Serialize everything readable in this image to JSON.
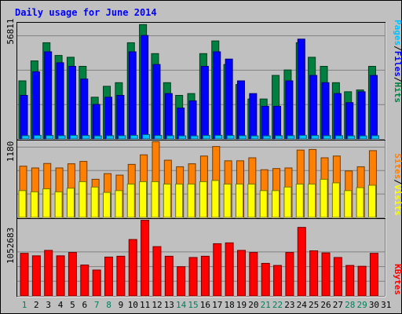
{
  "chart_data": [
    {
      "type": "bar",
      "title": "Daily usage for June 2014",
      "categories": [
        "1",
        "2",
        "3",
        "4",
        "5",
        "6",
        "7",
        "8",
        "9",
        "10",
        "11",
        "12",
        "13",
        "14",
        "15",
        "16",
        "17",
        "18",
        "19",
        "20",
        "21",
        "22",
        "23",
        "24",
        "25",
        "26",
        "27",
        "28",
        "29",
        "30",
        "31"
      ],
      "weekend_days": [
        "1",
        "7",
        "8",
        "14",
        "15",
        "21",
        "22",
        "28",
        "29"
      ],
      "y_tick_label": "56811",
      "ylim": [
        0,
        64000
      ],
      "ylabel_parts": [
        "Pages",
        "/",
        "Files",
        "/",
        "Hits"
      ],
      "series": [
        {
          "name": "Hits",
          "color": "#008040",
          "values": [
            32000,
            43000,
            53000,
            46000,
            45000,
            40000,
            23000,
            29000,
            31000,
            53000,
            63000,
            47000,
            31000,
            24000,
            25000,
            47000,
            54000,
            41000,
            30000,
            22000,
            22000,
            35000,
            38000,
            53000,
            45000,
            40000,
            31000,
            26000,
            27000,
            40000,
            0
          ]
        },
        {
          "name": "Files",
          "color": "#0000ff",
          "values": [
            24000,
            37000,
            48000,
            42000,
            40000,
            33000,
            19000,
            23000,
            24000,
            48000,
            57000,
            41000,
            25000,
            17000,
            21000,
            40000,
            48000,
            44000,
            32000,
            25000,
            18000,
            18000,
            32000,
            55000,
            35000,
            31000,
            25000,
            20000,
            26000,
            35000,
            0
          ]
        },
        {
          "name": "Pages",
          "color": "#00c0ff",
          "values": [
            1800,
            2000,
            1900,
            1800,
            2000,
            1900,
            1700,
            1800,
            1800,
            2000,
            2400,
            1900,
            1800,
            1700,
            1700,
            1900,
            2000,
            1900,
            1800,
            1700,
            1700,
            1800,
            1800,
            2000,
            1900,
            1800,
            1800,
            1700,
            1700,
            1800,
            0
          ]
        }
      ]
    },
    {
      "type": "bar",
      "categories": [
        "1",
        "2",
        "3",
        "4",
        "5",
        "6",
        "7",
        "8",
        "9",
        "10",
        "11",
        "12",
        "13",
        "14",
        "15",
        "16",
        "17",
        "18",
        "19",
        "20",
        "21",
        "22",
        "23",
        "24",
        "25",
        "26",
        "27",
        "28",
        "29",
        "30",
        "31"
      ],
      "y_tick_label": "1180",
      "ylim": [
        0,
        1290
      ],
      "ylabel_parts": [
        "Sites",
        "/",
        "Visits"
      ],
      "series": [
        {
          "name": "Visits",
          "color": "#ff8000",
          "values": [
            860,
            830,
            905,
            830,
            900,
            940,
            640,
            735,
            710,
            890,
            1050,
            1270,
            960,
            850,
            900,
            1030,
            1190,
            950,
            950,
            1000,
            800,
            820,
            830,
            1130,
            1140,
            1000,
            1030,
            780,
            850,
            1120,
            0
          ]
        },
        {
          "name": "Sites",
          "color": "#ffff00",
          "values": [
            450,
            430,
            480,
            430,
            490,
            600,
            510,
            420,
            450,
            560,
            600,
            600,
            560,
            560,
            560,
            600,
            620,
            560,
            560,
            560,
            450,
            450,
            510,
            560,
            560,
            640,
            580,
            450,
            500,
            540,
            0
          ]
        }
      ]
    },
    {
      "type": "bar",
      "categories": [
        "1",
        "2",
        "3",
        "4",
        "5",
        "6",
        "7",
        "8",
        "9",
        "10",
        "11",
        "12",
        "13",
        "14",
        "15",
        "16",
        "17",
        "18",
        "19",
        "20",
        "21",
        "22",
        "23",
        "24",
        "25",
        "26",
        "27",
        "28",
        "29",
        "30",
        "31"
      ],
      "y_tick_label": "1052683",
      "ylim": [
        0,
        1840000
      ],
      "ylabel": "KBytes",
      "series": [
        {
          "name": "KBytes",
          "color": "#ff0000",
          "values": [
            1020000,
            960000,
            1090000,
            960000,
            1040000,
            740000,
            620000,
            930000,
            950000,
            1350000,
            1810000,
            1180000,
            950000,
            700000,
            920000,
            950000,
            1250000,
            1270000,
            1090000,
            1040000,
            780000,
            730000,
            1040000,
            1640000,
            1080000,
            1030000,
            920000,
            730000,
            710000,
            1020000,
            0
          ]
        }
      ]
    }
  ]
}
